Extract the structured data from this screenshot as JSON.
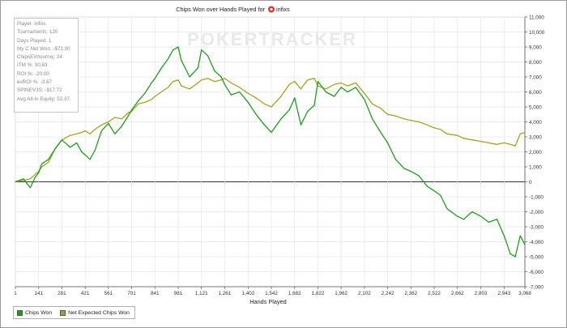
{
  "chart_data": {
    "type": "line",
    "title": "Chips Won over Hands Played for",
    "player_name": "infixs",
    "title_icon": "poker-chip-icon",
    "xlabel": "Hands Played",
    "ylabel": "",
    "xlim": [
      1,
      3068
    ],
    "ylim": [
      -7000,
      11000
    ],
    "x_ticks": [
      "1",
      "141",
      "281",
      "421",
      "561",
      "701",
      "841",
      "981",
      "1,121",
      "1,261",
      "1,402",
      "1,542",
      "1,682",
      "1,822",
      "1,962",
      "2,102",
      "2,242",
      "2,382",
      "2,522",
      "2,662",
      "2,803",
      "2,943",
      "3,068"
    ],
    "y_ticks": [
      "-7,000",
      "-6,000",
      "-5,000",
      "-4,000",
      "-3,000",
      "-2,000",
      "-1,000",
      "0",
      "1,000",
      "2,000",
      "3,000",
      "4,000",
      "5,000",
      "6,000",
      "7,000",
      "8,000",
      "9,000",
      "10,000",
      "11,000"
    ],
    "y_tick_values": [
      -7000,
      -6000,
      -5000,
      -4000,
      -3000,
      -2000,
      -1000,
      0,
      1000,
      2000,
      3000,
      4000,
      5000,
      6000,
      7000,
      8000,
      9000,
      10000,
      11000
    ],
    "grid": true,
    "legend_position": "bottom-left",
    "watermark": "POKERTRACKER",
    "series": [
      {
        "name": "Chips Won",
        "color": "#1e9e1e",
        "x": [
          1,
          50,
          90,
          120,
          141,
          160,
          200,
          240,
          281,
          330,
          370,
          400,
          421,
          450,
          480,
          520,
          561,
          600,
          640,
          680,
          701,
          740,
          780,
          820,
          841,
          880,
          920,
          950,
          981,
          1000,
          1050,
          1100,
          1121,
          1160,
          1200,
          1240,
          1261,
          1300,
          1350,
          1402,
          1450,
          1500,
          1542,
          1600,
          1650,
          1682,
          1720,
          1760,
          1800,
          1822,
          1870,
          1920,
          1962,
          2000,
          2050,
          2102,
          2150,
          2200,
          2242,
          2290,
          2340,
          2382,
          2430,
          2480,
          2522,
          2560,
          2600,
          2662,
          2700,
          2750,
          2803,
          2850,
          2900,
          2943,
          2980,
          3010,
          3040,
          3068
        ],
        "values": [
          0,
          200,
          -400,
          300,
          600,
          1200,
          1500,
          2200,
          2800,
          2300,
          2600,
          2000,
          1800,
          1500,
          2100,
          3400,
          3900,
          3200,
          3700,
          4400,
          4800,
          5400,
          5900,
          6600,
          6900,
          7600,
          8200,
          8800,
          9000,
          8100,
          7000,
          7600,
          8800,
          8400,
          7400,
          7000,
          6500,
          5800,
          6000,
          5300,
          4500,
          3800,
          3300,
          4200,
          4800,
          5600,
          3800,
          4700,
          5100,
          6700,
          6000,
          5700,
          6300,
          6000,
          6300,
          5500,
          4200,
          3300,
          2600,
          1500,
          900,
          700,
          400,
          -300,
          -600,
          -900,
          -1800,
          -2300,
          -2500,
          -2000,
          -2300,
          -2700,
          -2500,
          -3600,
          -4800,
          -5000,
          -3600,
          -4200
        ]
      },
      {
        "name": "Net Expected Chips Won",
        "color": "#a4a41e",
        "x": [
          1,
          50,
          90,
          120,
          141,
          160,
          200,
          240,
          281,
          330,
          370,
          400,
          421,
          450,
          480,
          520,
          561,
          600,
          640,
          680,
          701,
          740,
          780,
          820,
          841,
          880,
          920,
          950,
          981,
          1000,
          1050,
          1100,
          1121,
          1160,
          1200,
          1240,
          1261,
          1300,
          1350,
          1402,
          1450,
          1500,
          1542,
          1600,
          1650,
          1682,
          1720,
          1760,
          1800,
          1822,
          1870,
          1920,
          1962,
          2000,
          2050,
          2102,
          2150,
          2200,
          2242,
          2290,
          2340,
          2382,
          2430,
          2480,
          2522,
          2560,
          2600,
          2662,
          2700,
          2750,
          2803,
          2850,
          2900,
          2943,
          2980,
          3010,
          3040,
          3068
        ],
        "values": [
          0,
          100,
          200,
          500,
          700,
          1000,
          1300,
          2200,
          2800,
          3100,
          3200,
          3300,
          3400,
          3200,
          3500,
          3800,
          4000,
          4300,
          4200,
          4600,
          4700,
          5200,
          5300,
          5500,
          5700,
          6000,
          6300,
          6700,
          6800,
          6400,
          6200,
          6600,
          6800,
          6900,
          6700,
          6800,
          6900,
          6600,
          6300,
          5900,
          5600,
          5200,
          5000,
          5700,
          6500,
          6700,
          6200,
          6800,
          6900,
          6400,
          6200,
          6500,
          6600,
          6400,
          6600,
          5900,
          5200,
          4900,
          4500,
          4400,
          4200,
          4100,
          4000,
          3800,
          3600,
          3500,
          3200,
          3100,
          2900,
          2800,
          2700,
          2600,
          2500,
          2600,
          2500,
          2400,
          3200,
          3300
        ]
      }
    ]
  },
  "stats": [
    "Player: infixs",
    "Tournaments: 120",
    "Days Played: 1",
    "My C Net Won: -$72.00",
    "ChipsEV/tournej: 24",
    "ITM %: 30.83",
    "ROI %: -20.00",
    "evROI %: -3.67",
    "SPINEV3S: -$17.72",
    "Avg All-In Equity: 53.37"
  ],
  "colors": {
    "axis": "#555555",
    "grid": "#e6e6e6",
    "zero_line": "#333333"
  }
}
